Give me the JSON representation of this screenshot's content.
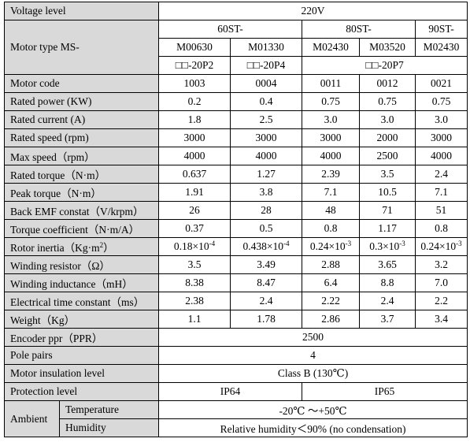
{
  "voltage": {
    "label": "Voltage level",
    "value": "220V"
  },
  "motor_type": {
    "label": "Motor type MS-",
    "groups": [
      "60ST-",
      "80ST-",
      "90ST-"
    ],
    "models": [
      "M00630",
      "M01330",
      "M02430",
      "M03520",
      "M02430"
    ],
    "suffixes": [
      "□□-20P2",
      "□□-20P4",
      "□□-20P7"
    ]
  },
  "rows": [
    {
      "label": "Motor code",
      "values": [
        "1003",
        "0004",
        "0011",
        "0012",
        "0021"
      ]
    },
    {
      "label": "Rated power (KW)",
      "values": [
        "0.2",
        "0.4",
        "0.75",
        "0.75",
        "0.75"
      ]
    },
    {
      "label": "Rated current (A)",
      "values": [
        "1.8",
        "2.5",
        "3.0",
        "3.0",
        "3.0"
      ]
    },
    {
      "label": "Rated speed (rpm)",
      "values": [
        "3000",
        "3000",
        "3000",
        "2000",
        "3000"
      ]
    },
    {
      "label": "Max speed（rpm）",
      "values": [
        "4000",
        "4000",
        "4000",
        "2500",
        "4000"
      ]
    },
    {
      "label": "Rated torque（N·m）",
      "values": [
        "0.637",
        "1.27",
        "2.39",
        "3.5",
        "2.4"
      ]
    },
    {
      "label": "Peak torque（N·m）",
      "values": [
        "1.91",
        "3.8",
        "7.1",
        "10.5",
        "7.1"
      ]
    },
    {
      "label": "Back EMF constat（V/krpm）",
      "values": [
        "26",
        "28",
        "48",
        "71",
        "51"
      ]
    },
    {
      "label": "Torque coefficient（N·m/A）",
      "values": [
        "0.37",
        "0.5",
        "0.8",
        "1.17",
        "0.8"
      ]
    }
  ],
  "inertia": {
    "label": "Rotor inertia（Kg·m",
    "label_sup": "2",
    "label_end": "）",
    "values": [
      {
        "base": "0.18×10",
        "exp": "-4"
      },
      {
        "base": "0.438×10",
        "exp": "-4"
      },
      {
        "base": "0.24×10",
        "exp": "-3"
      },
      {
        "base": "0.3×10",
        "exp": "-3"
      },
      {
        "base": "0.24×10",
        "exp": "-3"
      }
    ]
  },
  "rows2": [
    {
      "label": "Winding resistor（Ω）",
      "values": [
        "3.5",
        "3.49",
        "2.88",
        "3.65",
        "3.2"
      ]
    },
    {
      "label": "Winding inductance（mH）",
      "values": [
        "8.38",
        "8.47",
        "6.4",
        "8.8",
        "7.0"
      ]
    },
    {
      "label": "Electrical time constant（ms）",
      "values": [
        "2.38",
        "2.4",
        "2.22",
        "2.4",
        "2.2"
      ]
    },
    {
      "label": "Weight（Kg）",
      "values": [
        "1.1",
        "1.78",
        "2.86",
        "3.7",
        "3.4"
      ]
    }
  ],
  "encoder": {
    "label": "Encoder ppr（PPR）",
    "value": "2500"
  },
  "pole_pairs": {
    "label": "Pole pairs",
    "value": "4"
  },
  "insulation": {
    "label": "Motor insulation level",
    "value": "Class B (130℃)"
  },
  "protection": {
    "label": "Protection level",
    "values": [
      "IP64",
      "IP65"
    ]
  },
  "ambient": {
    "label": "Ambient",
    "temperature": {
      "label": "Temperature",
      "value": "-20℃ ～+50℃"
    },
    "humidity": {
      "label": "Humidity",
      "value": "Relative humidity＜90% (no condensation)"
    }
  }
}
